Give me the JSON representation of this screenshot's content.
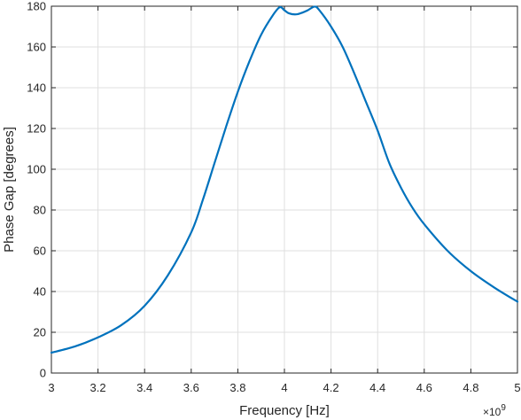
{
  "chart_data": {
    "type": "line",
    "xlabel": "Frequency [Hz]",
    "ylabel": "Phase Gap [degrees]",
    "x_exponent_label": "×10",
    "x_exponent_power": "9",
    "xlim": [
      3,
      5
    ],
    "ylim": [
      0,
      180
    ],
    "x_scale_note": "x values in units of 1e9 Hz",
    "grid": true,
    "x_ticks": [
      3,
      3.2,
      3.4,
      3.6,
      3.8,
      4,
      4.2,
      4.4,
      4.6,
      4.8,
      5
    ],
    "x_tick_labels": [
      "3",
      "3.2",
      "3.4",
      "3.6",
      "3.8",
      "4",
      "4.2",
      "4.4",
      "4.6",
      "4.8",
      "5"
    ],
    "y_ticks": [
      0,
      20,
      40,
      60,
      80,
      100,
      120,
      140,
      160,
      180
    ],
    "y_tick_labels": [
      "0",
      "20",
      "40",
      "60",
      "80",
      "100",
      "120",
      "140",
      "160",
      "180"
    ],
    "series": [
      {
        "color": "#0072BD",
        "x": [
          3.0,
          3.1,
          3.2,
          3.3,
          3.4,
          3.5,
          3.6,
          3.65,
          3.7,
          3.75,
          3.8,
          3.85,
          3.9,
          3.95,
          3.98,
          4.0,
          4.02,
          4.05,
          4.08,
          4.1,
          4.13,
          4.15,
          4.2,
          4.25,
          4.3,
          4.35,
          4.4,
          4.45,
          4.5,
          4.55,
          4.6,
          4.7,
          4.8,
          4.9,
          5.0
        ],
        "y": [
          10,
          13,
          17.5,
          23.5,
          33,
          48,
          69,
          85,
          103,
          121,
          138,
          153,
          166,
          175.5,
          179.5,
          178,
          176.5,
          176,
          177,
          178,
          179.8,
          178,
          170,
          160,
          147,
          133,
          119,
          103,
          91,
          81,
          73,
          60,
          50,
          42,
          35
        ]
      }
    ]
  }
}
